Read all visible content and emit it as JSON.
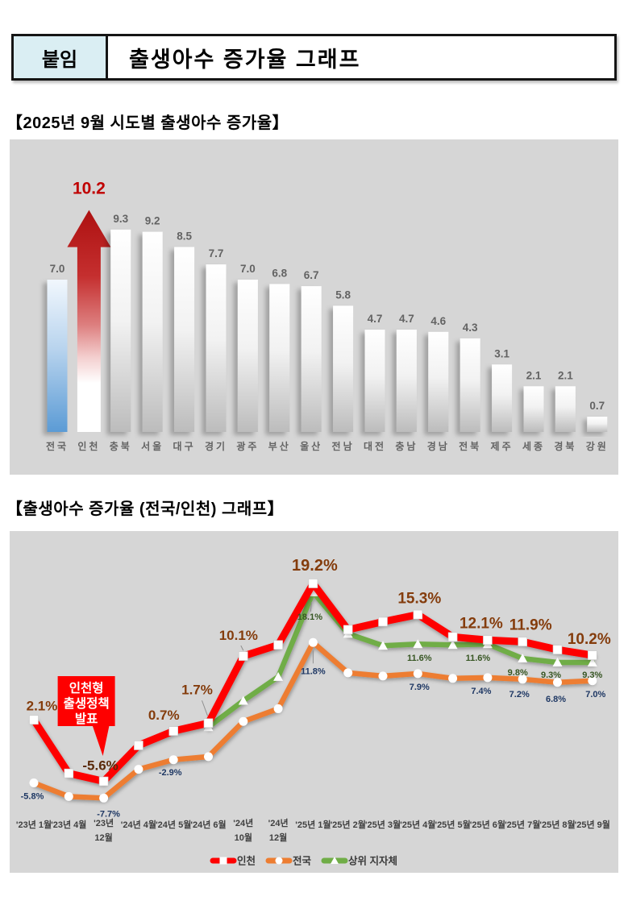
{
  "header": {
    "badge": "붙임",
    "title": "출생아수 증가율 그래프"
  },
  "sections": {
    "bar": {
      "title": "【2025년 9월 시도별 출생아수 증가율】"
    },
    "line": {
      "title": "【출생아수 증가율 (전국/인천) 그래프】"
    }
  },
  "colors": {
    "panel_bg": "#d6d6d6",
    "badge_bg": "#daeef3",
    "accent_red": "#c00000",
    "bar_value_label": "#636363",
    "national_bar": "#5b9bd5",
    "incheon_line": "#fe0000",
    "national_line": "#ed7d31",
    "top_gov_line": "#70ad47",
    "red_label": "#843c0c",
    "dark_red_label": "#5a2a0a",
    "navy_label": "#1f3864",
    "green_label": "#375623",
    "annotation_bg": "#fe0000"
  },
  "chart_data": [
    {
      "type": "bar",
      "title": "2025년 9월 시도별 출생아수 증가율",
      "unit": "%",
      "categories": [
        "전국",
        "인천",
        "충북",
        "서울",
        "대구",
        "경기",
        "광주",
        "부산",
        "울산",
        "전남",
        "대전",
        "충남",
        "경남",
        "전북",
        "제주",
        "세종",
        "경북",
        "강원"
      ],
      "values": [
        7.0,
        10.2,
        9.3,
        9.2,
        8.5,
        7.7,
        7.0,
        6.8,
        6.7,
        5.8,
        4.7,
        4.7,
        4.6,
        4.3,
        3.1,
        2.1,
        2.1,
        0.7
      ],
      "highlight": {
        "national_index": 0,
        "incheon_index": 1
      },
      "ylim": [
        0,
        12
      ],
      "grid": false,
      "legend": "none"
    },
    {
      "type": "line",
      "title": "출생아수 증가율 (전국/인천) 그래프",
      "categories": [
        "'23년 1월",
        "'23년 4월",
        "'23년 12월",
        "'24년 4월",
        "'24년 5월",
        "'24년 6월",
        "'24년 10월",
        "'24년 12월",
        "'25년 1월",
        "'25년 2월",
        "'25년 3월",
        "'25년 4월",
        "'25년 5월",
        "'25년 6월",
        "'25년 7월",
        "'25년 8월",
        "'25년 9월"
      ],
      "series": [
        {
          "name": "인천",
          "color": "#fe0000",
          "marker": "square",
          "values": [
            2.1,
            -4.6,
            -5.6,
            -1.1,
            0.7,
            1.7,
            10.1,
            11.5,
            19.2,
            13.4,
            14.4,
            15.3,
            12.5,
            12.1,
            11.9,
            10.9,
            10.2
          ],
          "point_labels": [
            {
              "index": 0,
              "text": "2.1%"
            },
            {
              "index": 2,
              "text": "-5.6%"
            },
            {
              "index": 4,
              "text": "0.7%"
            },
            {
              "index": 5,
              "text": "1.7%"
            },
            {
              "index": 6,
              "text": "10.1%"
            },
            {
              "index": 8,
              "text": "19.2%"
            },
            {
              "index": 11,
              "text": "15.3%"
            },
            {
              "index": 13,
              "text": "12.1%"
            },
            {
              "index": 14,
              "text": "11.9%"
            },
            {
              "index": 16,
              "text": "10.2%"
            }
          ]
        },
        {
          "name": "전국",
          "color": "#ed7d31",
          "marker": "circle",
          "values": [
            -5.8,
            -7.5,
            -7.7,
            -4.1,
            -2.9,
            -2.5,
            1.9,
            3.5,
            11.8,
            8.0,
            7.6,
            7.9,
            7.3,
            7.4,
            7.2,
            6.8,
            7.0
          ],
          "point_labels": [
            {
              "index": 0,
              "text": "-5.8%"
            },
            {
              "index": 2,
              "text": "-7.7%"
            },
            {
              "index": 4,
              "text": "-2.9%"
            },
            {
              "index": 8,
              "text": "11.8%"
            },
            {
              "index": 11,
              "text": "7.9%"
            },
            {
              "index": 13,
              "text": "7.4%"
            },
            {
              "index": 14,
              "text": "7.2%"
            },
            {
              "index": 15,
              "text": "6.8%"
            },
            {
              "index": 16,
              "text": "7.0%"
            }
          ]
        },
        {
          "name": "상위 지자체",
          "color": "#70ad47",
          "marker": "triangle",
          "values": [
            null,
            null,
            null,
            null,
            null,
            1.2,
            4.5,
            7.5,
            18.1,
            12.9,
            11.4,
            11.6,
            11.5,
            11.6,
            9.8,
            9.3,
            9.3
          ],
          "point_labels": [
            {
              "index": 8,
              "text": "18.1%"
            },
            {
              "index": 11,
              "text": "11.6%"
            },
            {
              "index": 13,
              "text": "11.6%"
            },
            {
              "index": 14,
              "text": "9.8%"
            },
            {
              "index": 15,
              "text": "9.3%"
            },
            {
              "index": 16,
              "text": "9.3%"
            }
          ]
        }
      ],
      "annotation": {
        "lines": [
          "인천형",
          "출생정책",
          "발표"
        ],
        "target_category": "'23년 12월"
      },
      "legend_position": "bottom",
      "ylim": [
        -10,
        22
      ],
      "grid": false
    }
  ]
}
